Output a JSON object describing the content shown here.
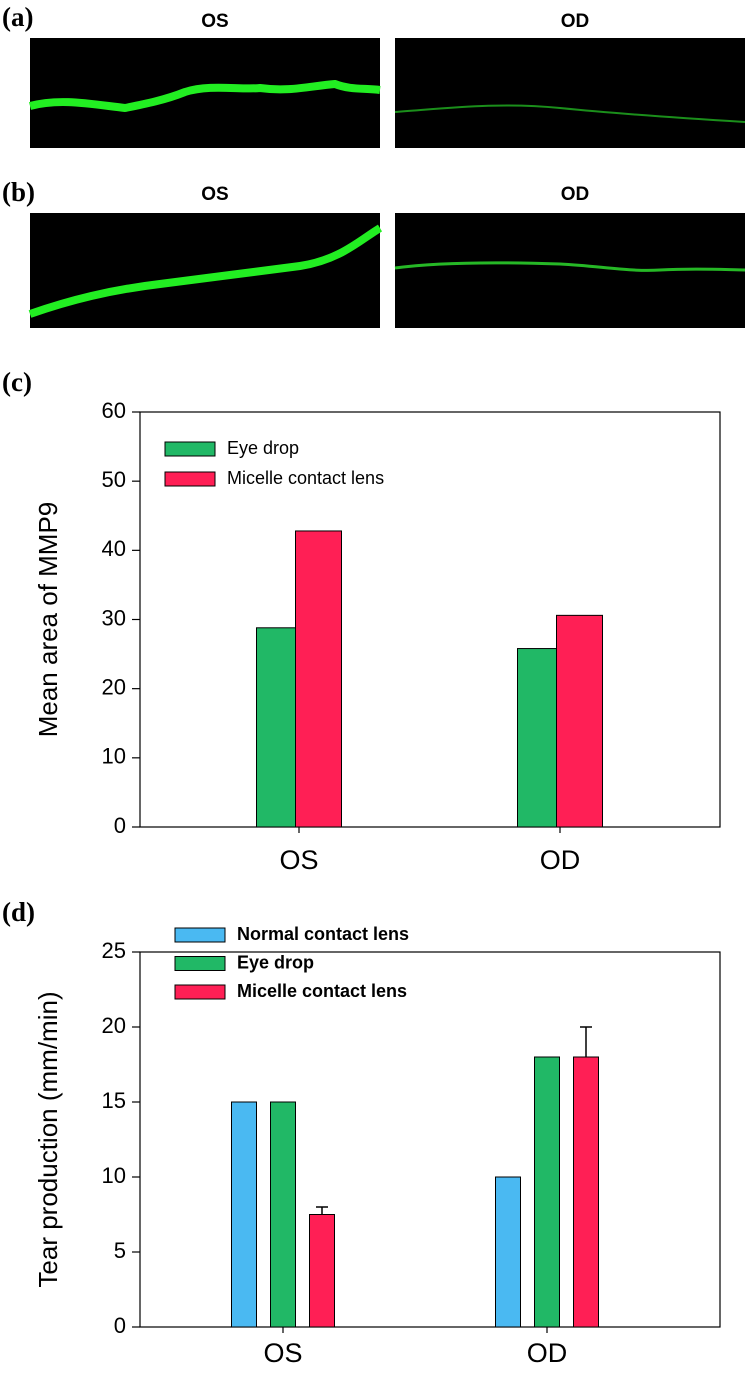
{
  "panels": [
    {
      "label": "(a)",
      "images": [
        "OS",
        "OD"
      ]
    },
    {
      "label": "(b)",
      "images": [
        "OS",
        "OD"
      ]
    }
  ],
  "chart_data": [
    {
      "type": "bar",
      "panel_label": "(c)",
      "y_label": "Mean area of MMP9",
      "categories": [
        "OS",
        "OD"
      ],
      "series": [
        {
          "name": "Eye drop",
          "color": "#21b866",
          "values": [
            28.8,
            25.8
          ]
        },
        {
          "name": "Micelle contact lens",
          "color": "#ff1f55",
          "values": [
            42.8,
            30.6
          ]
        }
      ],
      "ylim": [
        0,
        60
      ],
      "yticks": [
        0,
        10,
        20,
        30,
        40,
        50,
        60
      ],
      "legend": "upper left"
    },
    {
      "type": "bar",
      "panel_label": "(d)",
      "y_label": "Tear production (mm/min)",
      "categories": [
        "OS",
        "OD"
      ],
      "series": [
        {
          "name": "Normal contact lens",
          "color": "#4ab9f2",
          "values": [
            15,
            10
          ]
        },
        {
          "name": "Eye drop",
          "color": "#21b866",
          "values": [
            15,
            18
          ]
        },
        {
          "name": "Micelle contact lens",
          "color": "#ff1f55",
          "values": [
            7.5,
            18
          ],
          "errors": [
            0.5,
            2
          ]
        }
      ],
      "ylim": [
        0,
        25
      ],
      "yticks": [
        0,
        5,
        10,
        15,
        20,
        25
      ],
      "legend": "upper left"
    }
  ]
}
